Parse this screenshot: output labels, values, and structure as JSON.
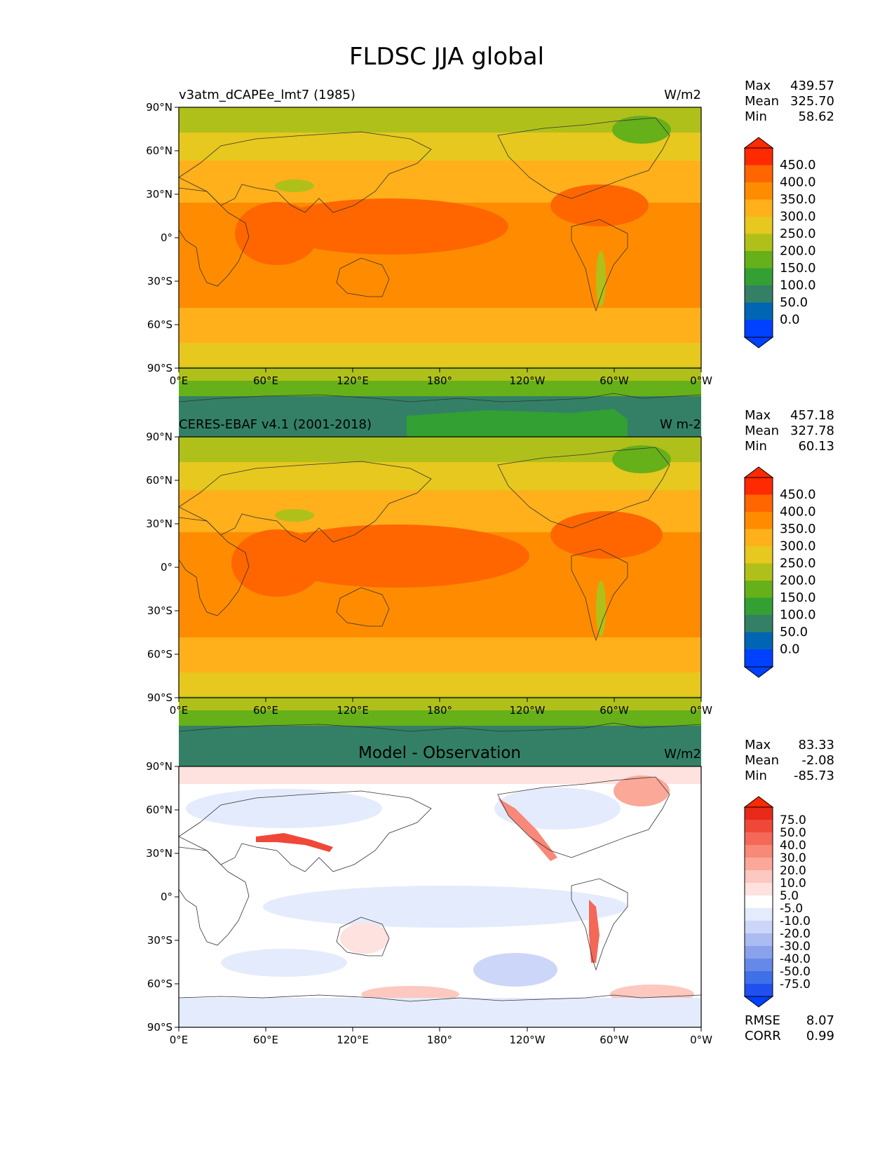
{
  "title": "FLDSC JJA global",
  "colors": {
    "top_scale": [
      "#0040ff",
      "#0066b3",
      "#338066",
      "#33a033",
      "#66b01a",
      "#b0c01a",
      "#e6c81f",
      "#ffb01a",
      "#ff8c00",
      "#ff6600",
      "#ff2a00"
    ],
    "diff_scale": [
      "#0040ff",
      "#2050f0",
      "#4070e8",
      "#6688e8",
      "#8aa2ec",
      "#acbcf0",
      "#ccd6f8",
      "#e4ebfc",
      "#ffffff",
      "#fde2df",
      "#fcc8c0",
      "#fba898",
      "#f88878",
      "#f46858",
      "#f04838",
      "#e82818",
      "#ff2a00"
    ]
  },
  "panels": [
    {
      "id": "test",
      "left_title": "v3atm_dCAPEe_lmt7 (1985)",
      "center_title": "",
      "units": "W/m2",
      "stats": [
        {
          "label": "Max",
          "value": "439.57"
        },
        {
          "label": "Mean",
          "value": "325.70"
        },
        {
          "label": "Min",
          "value": "58.62"
        }
      ],
      "colorbar_ticks": [
        "450.0",
        "400.0",
        "350.0",
        "300.0",
        "250.0",
        "200.0",
        "150.0",
        "100.0",
        "50.0",
        "0.0"
      ],
      "extra_stats": []
    },
    {
      "id": "reference",
      "left_title": "CERES-EBAF v4.1 (2001-2018)",
      "center_title": "",
      "units": "W m-2",
      "stats": [
        {
          "label": "Max",
          "value": "457.18"
        },
        {
          "label": "Mean",
          "value": "327.78"
        },
        {
          "label": "Min",
          "value": "60.13"
        }
      ],
      "colorbar_ticks": [
        "450.0",
        "400.0",
        "350.0",
        "300.0",
        "250.0",
        "200.0",
        "150.0",
        "100.0",
        "50.0",
        "0.0"
      ],
      "extra_stats": []
    },
    {
      "id": "diff",
      "left_title": "",
      "center_title": "Model - Observation",
      "units": "W/m2",
      "stats": [
        {
          "label": "Max",
          "value": "83.33"
        },
        {
          "label": "Mean",
          "value": "-2.08"
        },
        {
          "label": "Min",
          "value": "-85.73"
        }
      ],
      "colorbar_ticks": [
        "75.0",
        "50.0",
        "40.0",
        "30.0",
        "20.0",
        "10.0",
        "5.0",
        "-5.0",
        "-10.0",
        "-20.0",
        "-30.0",
        "-40.0",
        "-50.0",
        "-75.0"
      ],
      "extra_stats": [
        {
          "label": "RMSE",
          "value": "8.07"
        },
        {
          "label": "CORR",
          "value": "0.99"
        }
      ]
    }
  ],
  "lat_labels": [
    "90°N",
    "60°N",
    "30°N",
    "0°",
    "30°S",
    "60°S",
    "90°S"
  ],
  "lon_labels": [
    "0°E",
    "60°E",
    "120°E",
    "180°",
    "120°W",
    "60°W",
    "0°W"
  ]
}
